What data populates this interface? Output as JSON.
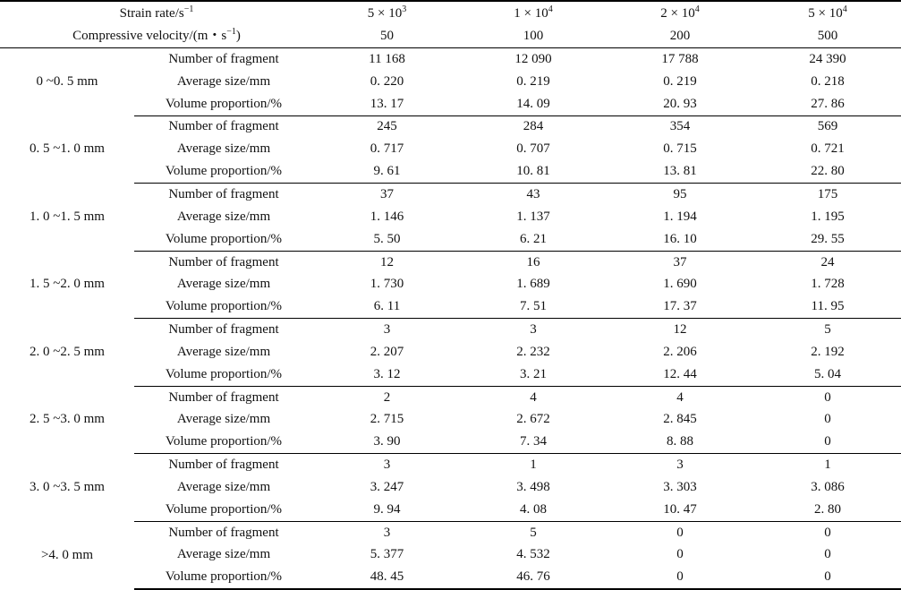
{
  "header": {
    "strain_rate_label": "Strain rate/s",
    "strain_rate_exp": "−1",
    "compressive_velocity_label": "Compressive velocity/(m・s",
    "compressive_velocity_exp": "−1",
    "compressive_velocity_close": ")",
    "strain_rates": [
      {
        "base": "5 × 10",
        "exp": "3"
      },
      {
        "base": "1 × 10",
        "exp": "4"
      },
      {
        "base": "2 × 10",
        "exp": "4"
      },
      {
        "base": "5 × 10",
        "exp": "4"
      }
    ],
    "velocities": [
      "50",
      "100",
      "200",
      "500"
    ]
  },
  "metrics": [
    "Number of fragment",
    "Average size/mm",
    "Volume proportion/%"
  ],
  "groups": [
    {
      "range": "0 ~0. 5 mm",
      "rows": [
        [
          "11 168",
          "12 090",
          "17 788",
          "24 390"
        ],
        [
          "0. 220",
          "0. 219",
          "0. 219",
          "0. 218"
        ],
        [
          "13. 17",
          "14. 09",
          "20. 93",
          "27. 86"
        ]
      ]
    },
    {
      "range": "0. 5 ~1. 0 mm",
      "rows": [
        [
          "245",
          "284",
          "354",
          "569"
        ],
        [
          "0. 717",
          "0. 707",
          "0. 715",
          "0. 721"
        ],
        [
          "9. 61",
          "10. 81",
          "13. 81",
          "22. 80"
        ]
      ]
    },
    {
      "range": "1. 0 ~1. 5 mm",
      "rows": [
        [
          "37",
          "43",
          "95",
          "175"
        ],
        [
          "1. 146",
          "1. 137",
          "1. 194",
          "1. 195"
        ],
        [
          "5. 50",
          "6. 21",
          "16. 10",
          "29. 55"
        ]
      ]
    },
    {
      "range": "1. 5 ~2. 0 mm",
      "rows": [
        [
          "12",
          "16",
          "37",
          "24"
        ],
        [
          "1. 730",
          "1. 689",
          "1. 690",
          "1. 728"
        ],
        [
          "6. 11",
          "7. 51",
          "17. 37",
          "11. 95"
        ]
      ]
    },
    {
      "range": "2. 0 ~2. 5 mm",
      "rows": [
        [
          "3",
          "3",
          "12",
          "5"
        ],
        [
          "2. 207",
          "2. 232",
          "2. 206",
          "2. 192"
        ],
        [
          "3. 12",
          "3. 21",
          "12. 44",
          "5. 04"
        ]
      ]
    },
    {
      "range": "2. 5 ~3. 0 mm",
      "rows": [
        [
          "2",
          "4",
          "4",
          "0"
        ],
        [
          "2. 715",
          "2. 672",
          "2. 845",
          "0"
        ],
        [
          "3. 90",
          "7. 34",
          "8. 88",
          "0"
        ]
      ]
    },
    {
      "range": "3. 0 ~3. 5 mm",
      "rows": [
        [
          "3",
          "1",
          "3",
          "1"
        ],
        [
          "3. 247",
          "3. 498",
          "3. 303",
          "3. 086"
        ],
        [
          "9. 94",
          "4. 08",
          "10. 47",
          "2. 80"
        ]
      ]
    },
    {
      "range": ">4. 0 mm",
      "rows": [
        [
          "3",
          "5",
          "0",
          "0"
        ],
        [
          "5. 377",
          "4. 532",
          "0",
          "0"
        ],
        [
          "48. 45",
          "46. 76",
          "0",
          "0"
        ]
      ]
    }
  ]
}
